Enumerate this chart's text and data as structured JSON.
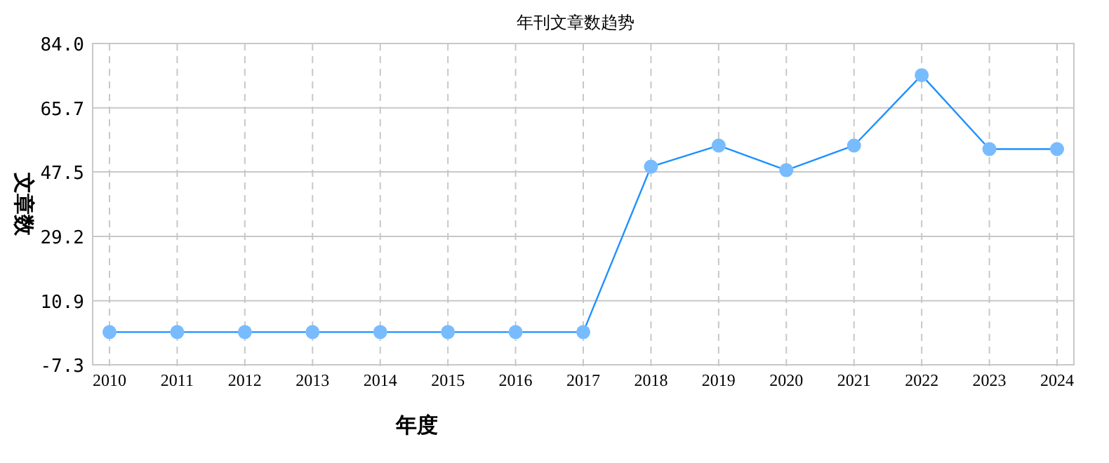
{
  "chart_data": {
    "type": "line",
    "title": "年刊文章数趋势",
    "xlabel": "年度",
    "ylabel": "文章数",
    "categories": [
      "2010",
      "2011",
      "2012",
      "2013",
      "2014",
      "2015",
      "2016",
      "2017",
      "2018",
      "2019",
      "2020",
      "2021",
      "2022",
      "2023",
      "2024"
    ],
    "series": [
      {
        "color": "#1e90ff",
        "values": [
          2,
          2,
          2,
          2,
          2,
          2,
          2,
          2,
          49,
          55,
          48,
          55,
          75,
          54,
          54
        ]
      }
    ],
    "ylim": [
      -7.3,
      84.0
    ],
    "yticks": [
      {
        "value": -7.3,
        "label": "-7.3"
      },
      {
        "value": 10.9,
        "label": "10.9"
      },
      {
        "value": 29.2,
        "label": "29.2"
      },
      {
        "value": 47.5,
        "label": "47.5"
      },
      {
        "value": 65.7,
        "label": "65.7"
      },
      {
        "value": 84.0,
        "label": "84.0"
      }
    ],
    "grid": true,
    "marker": "circle",
    "line_style": "solid"
  }
}
